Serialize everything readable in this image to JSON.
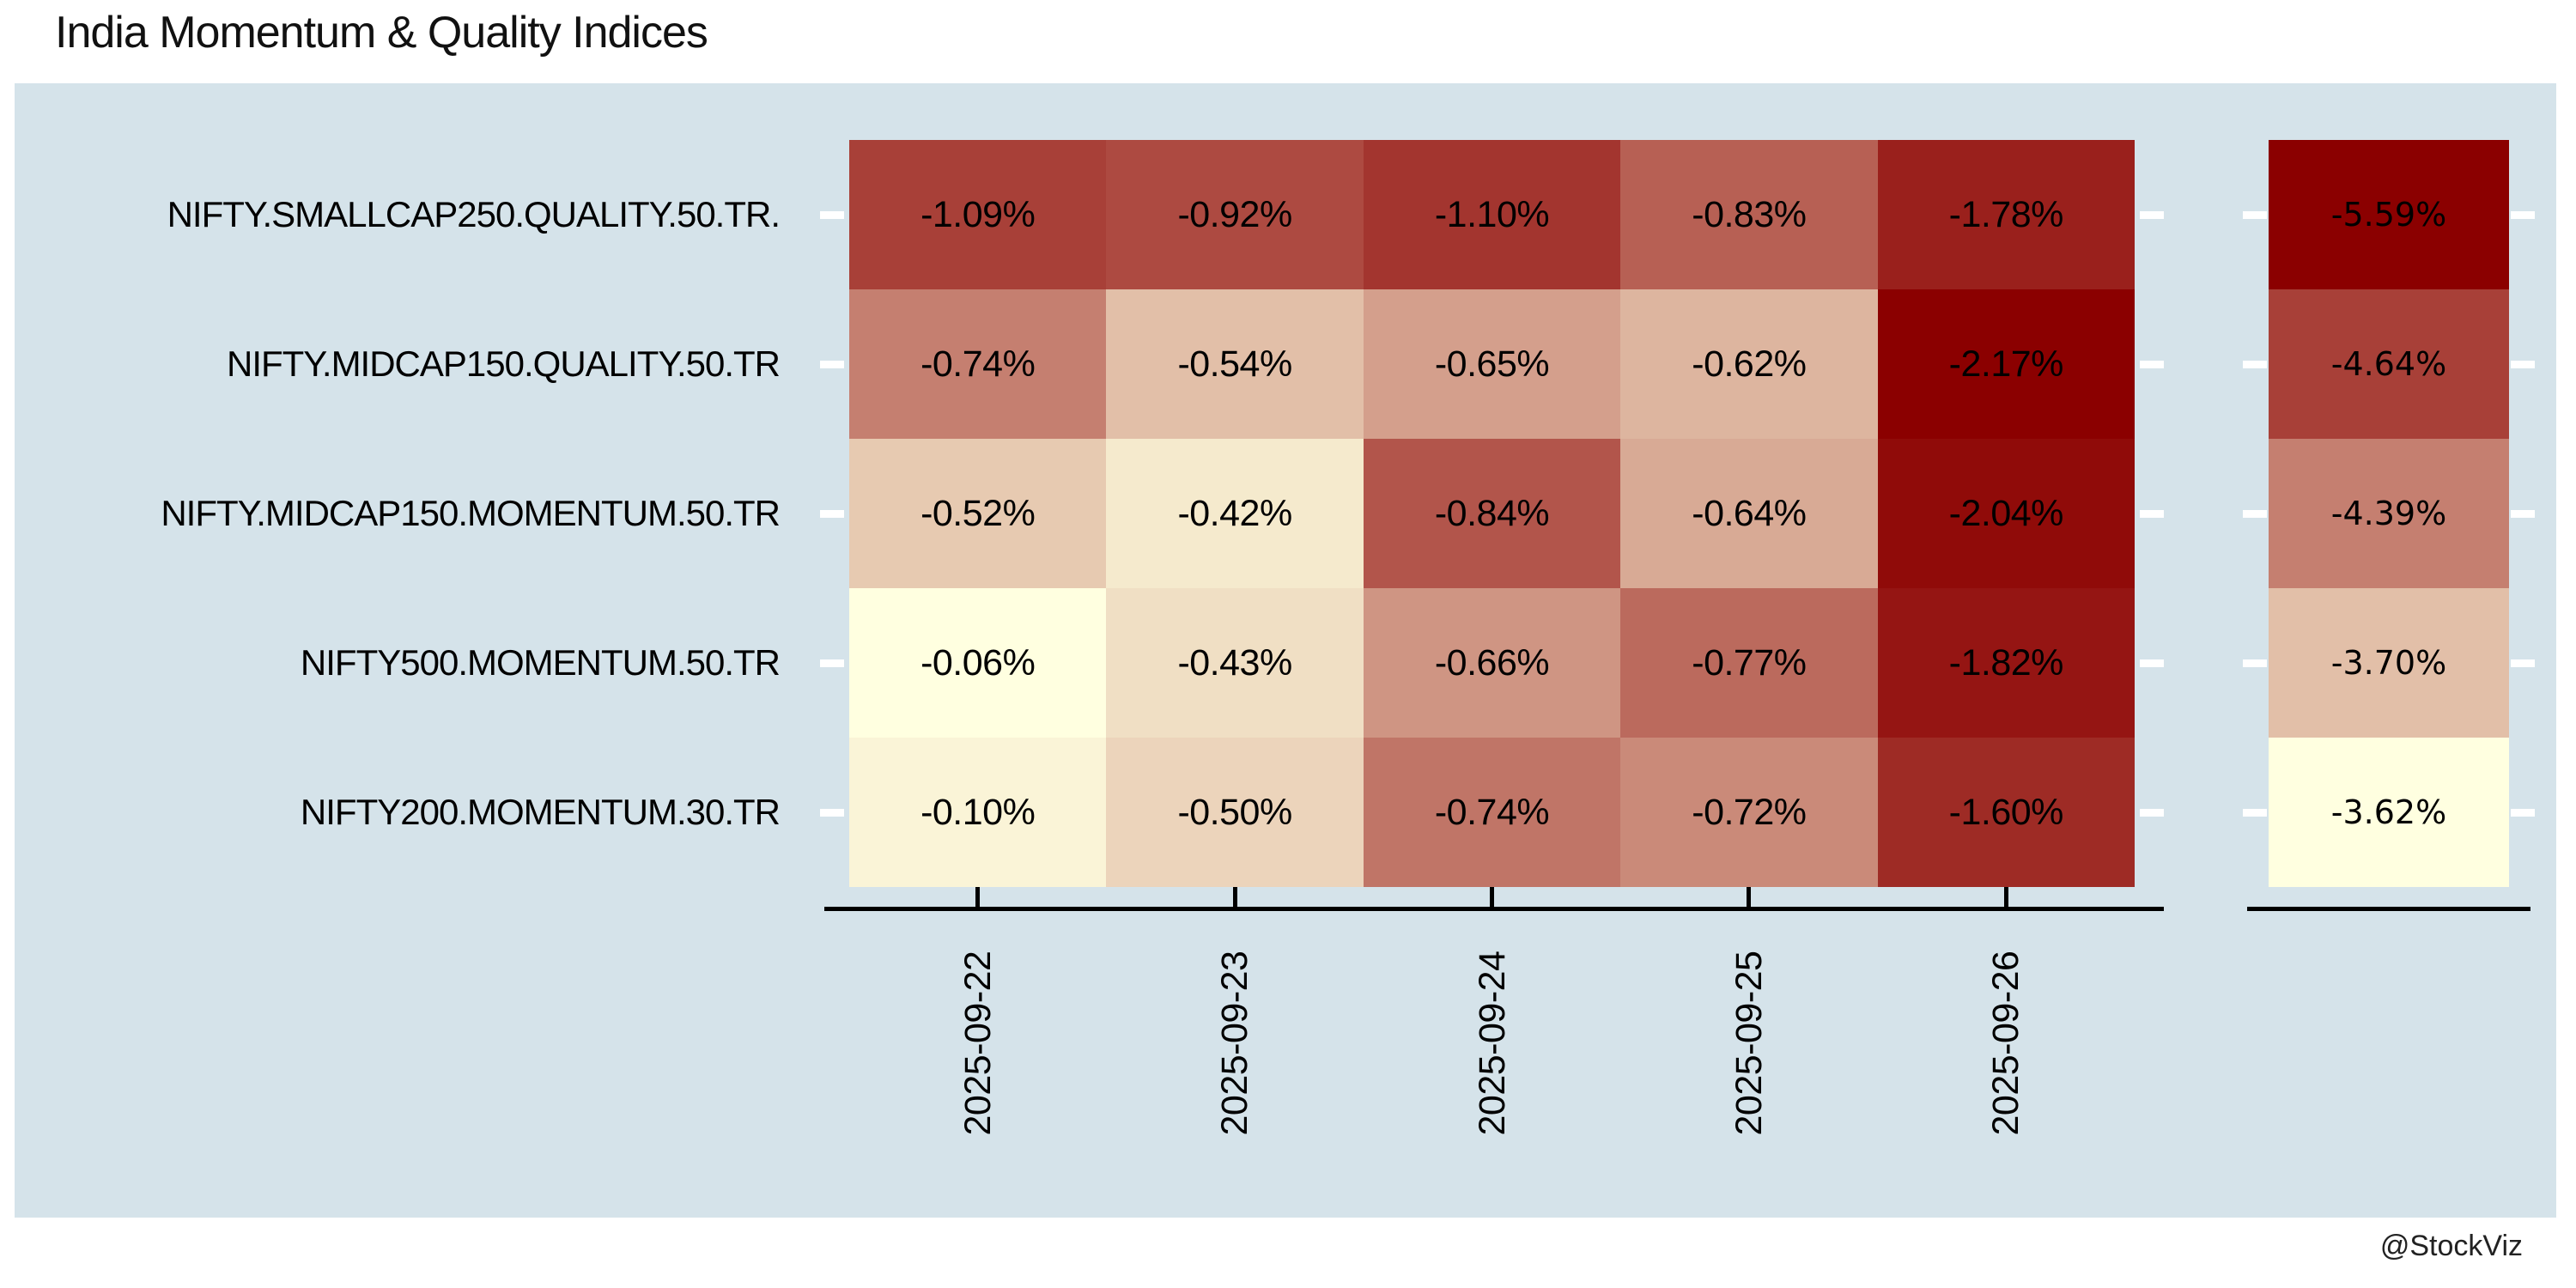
{
  "title": "India Momentum & Quality Indices",
  "watermark": "@StockViz",
  "colors": {
    "page_bg": "#ffffff",
    "panel_bg": "#d5e3ea",
    "axis": "#000000",
    "y_tick": "#ffffff",
    "cell_text": "#000000",
    "scale_low_color": "#ffffe0",
    "scale_high_color": "#8b0000"
  },
  "chart_data": {
    "type": "heatmap",
    "title": "India Momentum & Quality Indices",
    "legend_position": "none",
    "grid": "off",
    "rows": [
      "NIFTY.SMALLCAP250.QUALITY.50.TR.",
      "NIFTY.MIDCAP150.QUALITY.50.TR",
      "NIFTY.MIDCAP150.MOMENTUM.50.TR",
      "NIFTY500.MOMENTUM.50.TR",
      "NIFTY200.MOMENTUM.30.TR"
    ],
    "columns": [
      "2025-09-22",
      "2025-09-23",
      "2025-09-24",
      "2025-09-25",
      "2025-09-26"
    ],
    "cell_labels": [
      [
        "-1.09%",
        "-0.92%",
        "-1.10%",
        "-0.83%",
        "-1.78%"
      ],
      [
        "-0.74%",
        "-0.54%",
        "-0.65%",
        "-0.62%",
        "-2.17%"
      ],
      [
        "-0.52%",
        "-0.42%",
        "-0.84%",
        "-0.64%",
        "-2.04%"
      ],
      [
        "-0.06%",
        "-0.43%",
        "-0.66%",
        "-0.77%",
        "-1.82%"
      ],
      [
        "-0.10%",
        "-0.50%",
        "-0.74%",
        "-0.72%",
        "-1.60%"
      ]
    ],
    "values_pct": [
      [
        -1.09,
        -0.92,
        -1.1,
        -0.83,
        -1.78
      ],
      [
        -0.74,
        -0.54,
        -0.65,
        -0.62,
        -2.17
      ],
      [
        -0.52,
        -0.42,
        -0.84,
        -0.64,
        -2.04
      ],
      [
        -0.06,
        -0.43,
        -0.66,
        -0.77,
        -1.82
      ],
      [
        -0.1,
        -0.5,
        -0.74,
        -0.72,
        -1.6
      ]
    ],
    "cell_colors": [
      [
        "#a84038",
        "#ad4a41",
        "#a3352f",
        "#b76054",
        "#9a201c"
      ],
      [
        "#c57f70",
        "#e2bfa8",
        "#d49f8c",
        "#ddb59f",
        "#8b0000"
      ],
      [
        "#e7cab1",
        "#f5eacd",
        "#b2554b",
        "#d8aa95",
        "#900b09"
      ],
      [
        "#ffffe0",
        "#f0dfc4",
        "#cf9583",
        "#bb6a5d",
        "#951513"
      ],
      [
        "#faf4d7",
        "#ecd4bb",
        "#c07567",
        "#ca8a79",
        "#9e2b25"
      ]
    ],
    "summary_column": {
      "labels": [
        "-5.59%",
        "-4.64%",
        "-4.39%",
        "-3.70%",
        "-3.62%"
      ],
      "values_pct": [
        -5.59,
        -4.64,
        -4.39,
        -3.7,
        -3.62
      ],
      "colors": [
        "#8b0000",
        "#a84038",
        "#c57f70",
        "#e2bfa8",
        "#ffffe0"
      ]
    }
  }
}
